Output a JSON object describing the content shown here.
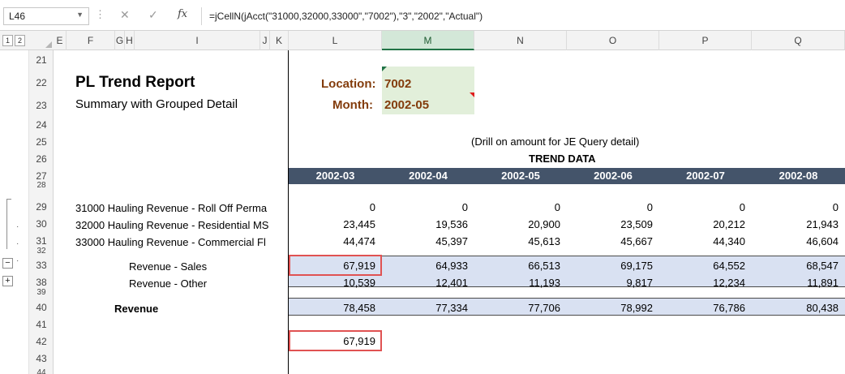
{
  "formula_bar": {
    "name_box": "L46",
    "fx_label": "fx",
    "formula": "=jCellN(jAcct(\"31000,32000,33000\",\"7002\"),\"3\",\"2002\",\"Actual\")"
  },
  "outline_levels": [
    "1",
    "2"
  ],
  "columns": [
    "E",
    "F",
    "G",
    "H",
    "I",
    "J",
    "K",
    "L",
    "M",
    "N",
    "O",
    "P",
    "Q"
  ],
  "selected_column": "M",
  "rows": [
    "21",
    "22",
    "23",
    "24",
    "25",
    "26",
    "27",
    "28",
    "29",
    "30",
    "31",
    "32",
    "33",
    "38",
    "39",
    "40",
    "41",
    "42",
    "43",
    "44"
  ],
  "report": {
    "title": "PL Trend Report",
    "subtitle": "Summary with Grouped Detail",
    "location_label": "Location:",
    "location_value": "7002",
    "month_label": "Month:",
    "month_value": "2002-05",
    "drill_note": "(Drill on amount for JE Query detail)",
    "trend_label": "TREND DATA"
  },
  "periods": [
    "2002-03",
    "2002-04",
    "2002-05",
    "2002-06",
    "2002-07",
    "2002-08"
  ],
  "detail_lines": [
    {
      "label": "31000  Hauling Revenue - Roll Off Perma",
      "values": [
        "0",
        "0",
        "0",
        "0",
        "0",
        "0"
      ]
    },
    {
      "label": "32000  Hauling Revenue - Residential MS",
      "values": [
        "23,445",
        "19,536",
        "20,900",
        "23,509",
        "20,212",
        "21,943"
      ]
    },
    {
      "label": "33000  Hauling Revenue - Commercial Fl",
      "values": [
        "44,474",
        "45,397",
        "45,613",
        "45,667",
        "44,340",
        "46,604"
      ]
    }
  ],
  "summary_lines": [
    {
      "label": "Revenue - Sales",
      "values": [
        "67,919",
        "64,933",
        "66,513",
        "69,175",
        "64,552",
        "68,547"
      ]
    },
    {
      "label": "Revenue - Other",
      "values": [
        "10,539",
        "12,401",
        "11,193",
        "9,817",
        "12,234",
        "11,891"
      ]
    }
  ],
  "total_line": {
    "label": "Revenue",
    "values": [
      "78,458",
      "77,334",
      "77,706",
      "78,992",
      "76,786",
      "80,438"
    ]
  },
  "check_cell": "67,919",
  "outline_buttons": {
    "collapse": "−",
    "expand": "+"
  }
}
